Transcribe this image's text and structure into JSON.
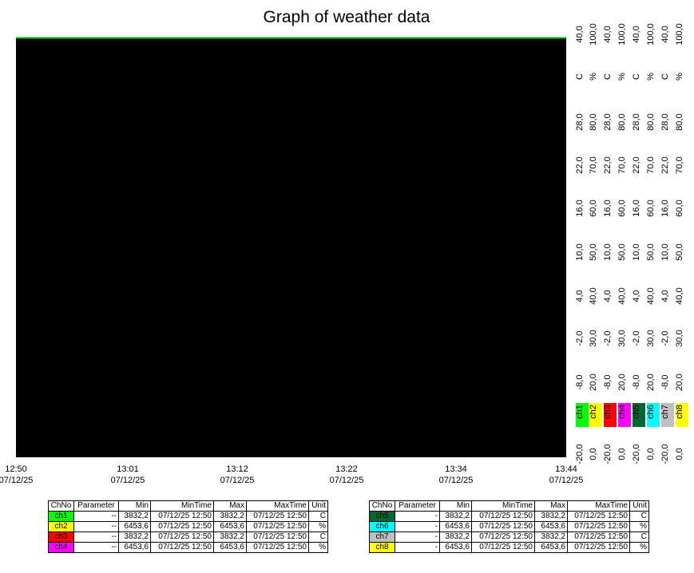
{
  "title": "Graph of weather data",
  "x_labels": [
    {
      "time": "12:50",
      "date": "07/12/25"
    },
    {
      "time": "13:01",
      "date": "07/12/25"
    },
    {
      "time": "13:12",
      "date": "07/12/25"
    },
    {
      "time": "13:22",
      "date": "07/12/25"
    },
    {
      "time": "13:34",
      "date": "07/12/25"
    },
    {
      "time": "13:44",
      "date": "07/12/25"
    }
  ],
  "y_axes": [
    {
      "ticks": [
        "40,0",
        "28,0",
        "22,0",
        "16,0",
        "10,0",
        "4,0",
        "-2,0",
        "-8,0",
        "-20,0"
      ],
      "unit": "C",
      "channel": "ch1",
      "color": "#00ff00"
    },
    {
      "ticks": [
        "100,0",
        "80,0",
        "70,0",
        "60,0",
        "50,0",
        "40,0",
        "30,0",
        "20,0",
        "0,0"
      ],
      "unit": "%",
      "channel": "ch2",
      "color": "#ffff00"
    },
    {
      "ticks": [
        "40,0",
        "28,0",
        "22,0",
        "16,0",
        "10,0",
        "4,0",
        "-2,0",
        "-8,0",
        "-20,0"
      ],
      "unit": "C",
      "channel": "ch3",
      "color": "#ff0000"
    },
    {
      "ticks": [
        "100,0",
        "80,0",
        "70,0",
        "60,0",
        "50,0",
        "40,0",
        "30,0",
        "20,0",
        "0,0"
      ],
      "unit": "%",
      "channel": "ch4",
      "color": "#ff00ff"
    },
    {
      "ticks": [
        "40,0",
        "28,0",
        "22,0",
        "16,0",
        "10,0",
        "4,0",
        "-2,0",
        "-8,0",
        "-20,0"
      ],
      "unit": "C",
      "channel": "ch5",
      "color": "#006633"
    },
    {
      "ticks": [
        "100,0",
        "80,0",
        "70,0",
        "60,0",
        "50,0",
        "40,0",
        "30,0",
        "20,0",
        "0,0"
      ],
      "unit": "%",
      "channel": "ch6",
      "color": "#00ffff"
    },
    {
      "ticks": [
        "40,0",
        "28,0",
        "22,0",
        "16,0",
        "10,0",
        "4,0",
        "-2,0",
        "-8,0",
        "-20,0"
      ],
      "unit": "C",
      "channel": "ch7",
      "color": "#c0c0c0"
    },
    {
      "ticks": [
        "100,0",
        "80,0",
        "70,0",
        "60,0",
        "50,0",
        "40,0",
        "30,0",
        "20,0",
        "0,0"
      ],
      "unit": "%",
      "channel": "ch8",
      "color": "#ffff00"
    }
  ],
  "tables": [
    {
      "header": [
        "ChNo",
        "Parameter",
        "Min",
        "MinTime",
        "Max",
        "MaxTime",
        "Unit"
      ],
      "rows": [
        {
          "color": "#00ff00",
          "cells": [
            "ch1",
            "--",
            "3832,2",
            "07/12/25 12:50",
            "3832,2",
            "07/12/25 12:50",
            "C"
          ]
        },
        {
          "color": "#ffff00",
          "cells": [
            "ch2",
            "--",
            "6453,6",
            "07/12/25 12:50",
            "6453,6",
            "07/12/25 12:50",
            "%"
          ]
        },
        {
          "color": "#ff0000",
          "cells": [
            "ch3",
            "--",
            "3832,2",
            "07/12/25 12:50",
            "3832,2",
            "07/12/25 12:50",
            "C"
          ]
        },
        {
          "color": "#ff00ff",
          "cells": [
            "ch4",
            "--",
            "6453,6",
            "07/12/25 12:50",
            "6453,6",
            "07/12/25 12:50",
            "%"
          ]
        }
      ]
    },
    {
      "header": [
        "ChNo",
        "Parameter",
        "Min",
        "MinTime",
        "Max",
        "MaxTime",
        "Unit"
      ],
      "rows": [
        {
          "color": "#006633",
          "cells": [
            "ch5",
            "-",
            "3832,2",
            "07/12/25 12:50",
            "3832,2",
            "07/12/25 12:50",
            "C"
          ]
        },
        {
          "color": "#00ffff",
          "cells": [
            "ch6",
            "-",
            "6453,6",
            "07/12/25 12:50",
            "6453,6",
            "07/12/25 12:50",
            "%"
          ]
        },
        {
          "color": "#c0c0c0",
          "cells": [
            "ch7",
            "-",
            "3832,2",
            "07/12/25 12:50",
            "3832,2",
            "07/12/25 12:50",
            "C"
          ]
        },
        {
          "color": "#ffff00",
          "cells": [
            "ch8",
            "-",
            "6453,6",
            "07/12/25 12:50",
            "6453,6",
            "07/12/25 12:50",
            "%"
          ]
        }
      ]
    }
  ]
}
